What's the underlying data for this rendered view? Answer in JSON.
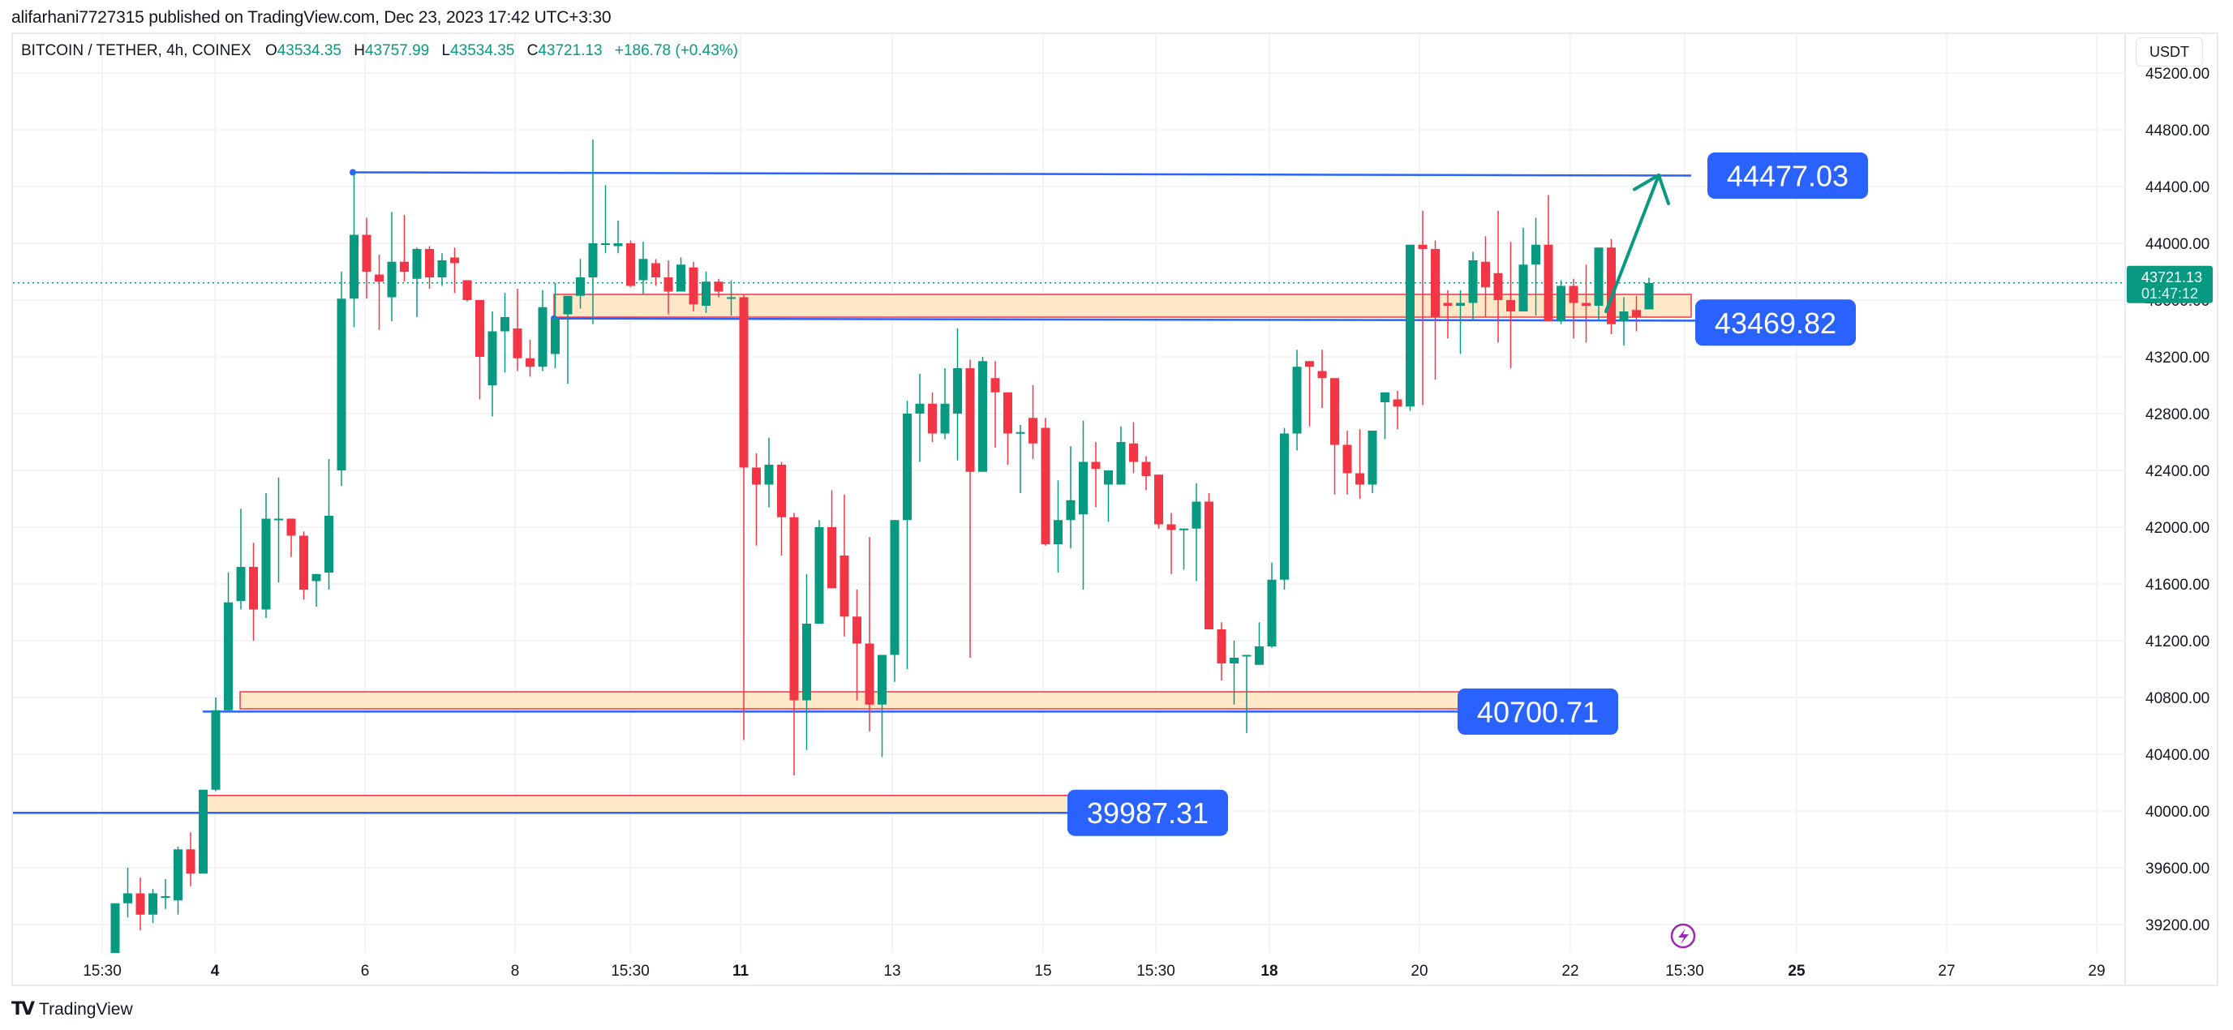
{
  "header": {
    "published": "alifarhani7727315 published on TradingView.com, Dec 23, 2023 17:42 UTC+3:30"
  },
  "legend": {
    "symbol": "BITCOIN / TETHER, 4h, COINEX",
    "open_key": "O",
    "open": "43534.35",
    "high_key": "H",
    "high": "43757.99",
    "low_key": "L",
    "low": "43534.35",
    "close_key": "C",
    "close": "43721.13",
    "change": "+186.78 (+0.43%)"
  },
  "currency_button": "USDT",
  "last_price": {
    "price": "43721.13",
    "countdown": "01:47:12",
    "value": 43721.13
  },
  "colors": {
    "up": "#089981",
    "down": "#f23645",
    "label_bg": "#2962ff",
    "zone_fill": "#ffe8c7",
    "zone_border": "#f23645",
    "grid": "#f0f1f3",
    "line": "#2962ff",
    "arrow": "#089981",
    "lightning": "#9c27b0"
  },
  "footer": {
    "brand": "TradingView",
    "logo_mark": "TV"
  },
  "annotations": {
    "level_labels": [
      {
        "text": "44477.03",
        "price": 44477.03
      },
      {
        "text": "43469.82",
        "price": 43469.82
      },
      {
        "text": "40700.71",
        "price": 40700.71
      },
      {
        "text": "39987.31",
        "price": 39987.31
      }
    ]
  },
  "chart_data": {
    "type": "candlestick",
    "title": "BITCOIN / TETHER, 4h, COINEX",
    "xlabel": "",
    "ylabel": "USDT",
    "ylim": [
      39000,
      45200
    ],
    "y_ticks": [
      "45200.00",
      "44800.00",
      "44400.00",
      "44000.00",
      "43600.00",
      "43200.00",
      "42800.00",
      "42400.00",
      "42000.00",
      "41600.00",
      "41200.00",
      "40800.00",
      "40400.00",
      "40000.00",
      "39600.00",
      "39200.00"
    ],
    "x_ticks": [
      {
        "label": "15:30",
        "bold": false
      },
      {
        "label": "4",
        "bold": true
      },
      {
        "label": "6",
        "bold": false
      },
      {
        "label": "8",
        "bold": false
      },
      {
        "label": "15:30",
        "bold": false
      },
      {
        "label": "11",
        "bold": true
      },
      {
        "label": "13",
        "bold": false
      },
      {
        "label": "15",
        "bold": false
      },
      {
        "label": "15:30",
        "bold": false
      },
      {
        "label": "18",
        "bold": true
      },
      {
        "label": "20",
        "bold": false
      },
      {
        "label": "22",
        "bold": false
      },
      {
        "label": "15:30",
        "bold": false
      },
      {
        "label": "25",
        "bold": true
      },
      {
        "label": "27",
        "bold": false
      },
      {
        "label": "29",
        "bold": false
      }
    ],
    "grid": true,
    "candles": [
      [
        39000,
        39350,
        39000,
        39350
      ],
      [
        39350,
        39600,
        39250,
        39420
      ],
      [
        39420,
        39530,
        39160,
        39270
      ],
      [
        39270,
        39450,
        39210,
        39420
      ],
      [
        39400,
        39520,
        39310,
        39400
      ],
      [
        39370,
        39750,
        39270,
        39730
      ],
      [
        39730,
        39850,
        39470,
        39560
      ],
      [
        39560,
        40020,
        39560,
        40150
      ],
      [
        40150,
        40800,
        40140,
        40710
      ],
      [
        40710,
        41680,
        40700,
        41470
      ],
      [
        41480,
        42130,
        41420,
        41720
      ],
      [
        41720,
        41890,
        41200,
        41420
      ],
      [
        41420,
        42240,
        41360,
        42060
      ],
      [
        42060,
        42350,
        41610,
        42060
      ],
      [
        42060,
        42060,
        41790,
        41940
      ],
      [
        41940,
        41970,
        41490,
        41560
      ],
      [
        41620,
        41620,
        41440,
        41670
      ],
      [
        41680,
        42480,
        41560,
        42080
      ],
      [
        42400,
        43800,
        42290,
        43610
      ],
      [
        43610,
        44490,
        43410,
        44060
      ],
      [
        44060,
        44180,
        43610,
        43800
      ],
      [
        43780,
        43920,
        43390,
        43730
      ],
      [
        43620,
        44220,
        43450,
        43870
      ],
      [
        43870,
        44200,
        43730,
        43800
      ],
      [
        43750,
        43970,
        43480,
        43960
      ],
      [
        43960,
        43980,
        43680,
        43760
      ],
      [
        43760,
        43930,
        43700,
        43880
      ],
      [
        43900,
        43970,
        43650,
        43860
      ],
      [
        43740,
        43740,
        43590,
        43600
      ],
      [
        43600,
        43600,
        42900,
        43200
      ],
      [
        43000,
        43520,
        42780,
        43380
      ],
      [
        43380,
        43650,
        43090,
        43480
      ],
      [
        43400,
        43680,
        43100,
        43190
      ],
      [
        43190,
        43320,
        43060,
        43130
      ],
      [
        43130,
        43670,
        43100,
        43550
      ],
      [
        43220,
        43720,
        43120,
        43470
      ],
      [
        43500,
        43610,
        43010,
        43630
      ],
      [
        43630,
        43890,
        43540,
        43760
      ],
      [
        43760,
        44730,
        43430,
        44000
      ],
      [
        44000,
        44410,
        43930,
        44000
      ],
      [
        43980,
        44160,
        43930,
        44000
      ],
      [
        44000,
        44020,
        43690,
        43700
      ],
      [
        43740,
        44010,
        43640,
        43890
      ],
      [
        43860,
        43890,
        43700,
        43760
      ],
      [
        43760,
        43880,
        43500,
        43660
      ],
      [
        43660,
        43900,
        43680,
        43850
      ],
      [
        43830,
        43870,
        43520,
        43570
      ],
      [
        43560,
        43800,
        43510,
        43730
      ],
      [
        43730,
        43750,
        43620,
        43660
      ],
      [
        43620,
        43740,
        43490,
        43620
      ],
      [
        43620,
        43640,
        40500,
        42420
      ],
      [
        42420,
        42520,
        41870,
        42300
      ],
      [
        42300,
        42630,
        42140,
        42440
      ],
      [
        42440,
        42460,
        41800,
        42070
      ],
      [
        42070,
        42100,
        40250,
        40780
      ],
      [
        40780,
        41670,
        40430,
        41320
      ],
      [
        41320,
        42050,
        41540,
        42000
      ],
      [
        42000,
        42260,
        41620,
        41570
      ],
      [
        41800,
        42230,
        41230,
        41370
      ],
      [
        41370,
        41560,
        40780,
        41180
      ],
      [
        41180,
        41930,
        40560,
        40750
      ],
      [
        40750,
        40620,
        40380,
        41100
      ],
      [
        41100,
        41330,
        40910,
        42050
      ],
      [
        42050,
        42890,
        41000,
        42800
      ],
      [
        42800,
        43080,
        42460,
        42870
      ],
      [
        42870,
        42950,
        42600,
        42660
      ],
      [
        42660,
        43120,
        42620,
        42870
      ],
      [
        42800,
        43400,
        42470,
        43120
      ],
      [
        43120,
        43180,
        41080,
        42390
      ],
      [
        42390,
        43200,
        42390,
        43170
      ],
      [
        43050,
        43170,
        42560,
        42950
      ],
      [
        42950,
        42830,
        42440,
        42660
      ],
      [
        42660,
        42720,
        42240,
        42670
      ],
      [
        42770,
        43000,
        42480,
        42590
      ],
      [
        42700,
        42770,
        41870,
        41880
      ],
      [
        41880,
        42330,
        41680,
        42050
      ],
      [
        42050,
        42570,
        41850,
        42190
      ],
      [
        42090,
        42750,
        41560,
        42460
      ],
      [
        42460,
        42600,
        42140,
        42410
      ],
      [
        42300,
        42350,
        42040,
        42400
      ],
      [
        42300,
        42710,
        42330,
        42600
      ],
      [
        42590,
        42740,
        42380,
        42460
      ],
      [
        42460,
        42500,
        42260,
        42360
      ],
      [
        42370,
        42330,
        41990,
        42020
      ],
      [
        42020,
        42100,
        41670,
        41980
      ],
      [
        41980,
        41990,
        41700,
        41990
      ],
      [
        41990,
        42310,
        41620,
        42180
      ],
      [
        42180,
        42240,
        41760,
        41280
      ],
      [
        41280,
        41330,
        40920,
        41040
      ],
      [
        41040,
        41200,
        40750,
        41080
      ],
      [
        41100,
        41080,
        40550,
        41100
      ],
      [
        41030,
        41330,
        41130,
        41160
      ],
      [
        41160,
        41750,
        41150,
        41630
      ],
      [
        41630,
        42700,
        41560,
        42660
      ],
      [
        42660,
        43250,
        42540,
        43130
      ],
      [
        43170,
        43120,
        42710,
        43130
      ],
      [
        43100,
        43250,
        42840,
        43050
      ],
      [
        43050,
        43030,
        42230,
        42580
      ],
      [
        42580,
        42680,
        42230,
        42380
      ],
      [
        42380,
        42690,
        42200,
        42300
      ],
      [
        42300,
        42480,
        42240,
        42680
      ],
      [
        42880,
        42940,
        42620,
        42950
      ],
      [
        42900,
        42960,
        42690,
        42850
      ],
      [
        42850,
        43300,
        42820,
        43990
      ],
      [
        43990,
        44230,
        42860,
        43960
      ],
      [
        43960,
        44020,
        43040,
        43480
      ],
      [
        43580,
        43670,
        43330,
        43560
      ],
      [
        43560,
        43670,
        43220,
        43580
      ],
      [
        43580,
        43940,
        43460,
        43880
      ],
      [
        43870,
        44050,
        43480,
        43690
      ],
      [
        43790,
        44230,
        43300,
        43600
      ],
      [
        43600,
        44010,
        43120,
        43520
      ],
      [
        43520,
        44110,
        43520,
        43850
      ],
      [
        43850,
        44180,
        43490,
        43990
      ],
      [
        43990,
        44340,
        43450,
        43450
      ],
      [
        43450,
        43740,
        43430,
        43700
      ],
      [
        43700,
        43750,
        43330,
        43580
      ],
      [
        43580,
        43850,
        43300,
        43560
      ],
      [
        43560,
        43900,
        43460,
        43970
      ],
      [
        43970,
        44030,
        43360,
        43430
      ],
      [
        43450,
        43620,
        43280,
        43520
      ],
      [
        43530,
        43630,
        43380,
        43480
      ],
      [
        43534.35,
        43757.99,
        43534.35,
        43721.13
      ]
    ],
    "horizontal_levels": [
      44477.03,
      43469.82,
      40700.71,
      39987.31
    ],
    "zones": [
      {
        "from": 43480,
        "to": 43640,
        "label": "43469.82"
      },
      {
        "from": 40720,
        "to": 40840,
        "label": "40700.71"
      },
      {
        "from": 39990,
        "to": 40110,
        "label": "39987.31"
      }
    ]
  }
}
